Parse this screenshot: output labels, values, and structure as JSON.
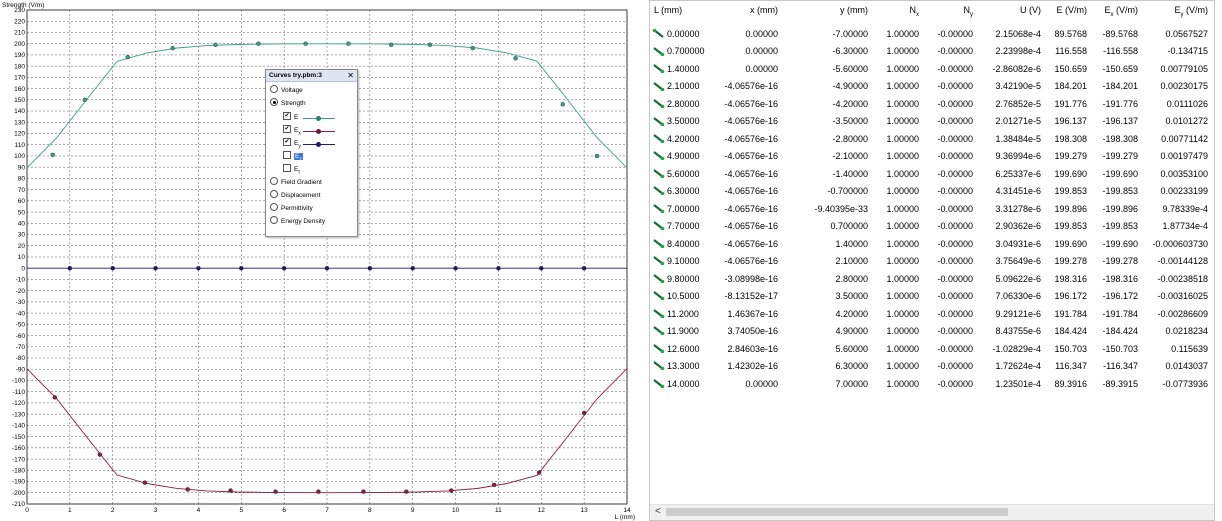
{
  "chart": {
    "ylabel": "Strength (V/m)",
    "xlabel": "L (mm)",
    "yticks": [
      230,
      220,
      210,
      200,
      190,
      180,
      170,
      160,
      150,
      140,
      130,
      120,
      110,
      100,
      90,
      80,
      70,
      60,
      50,
      40,
      30,
      20,
      10,
      0,
      -10,
      -20,
      -30,
      -40,
      -50,
      -60,
      -70,
      -80,
      -90,
      -100,
      -110,
      -120,
      -130,
      -140,
      -150,
      -160,
      -170,
      -180,
      -190,
      -200,
      -210
    ],
    "xticks": [
      0,
      1,
      2,
      3,
      4,
      5,
      6,
      7,
      8,
      9,
      10,
      11,
      12,
      13,
      14
    ]
  },
  "chart_data": {
    "type": "line",
    "xlabel": "L (mm)",
    "ylabel": "Strength (V/m)",
    "xlim": [
      0,
      14
    ],
    "ylim": [
      -210,
      230
    ],
    "grid": true,
    "series": [
      {
        "name": "E",
        "color": "#3c9e87",
        "x": [
          0,
          0.7,
          1.4,
          2.1,
          2.8,
          3.5,
          4.2,
          4.9,
          5.6,
          6.3,
          7,
          7.7,
          8.4,
          9.1,
          9.8,
          10.5,
          11.2,
          11.9,
          12.6,
          13.3,
          14
        ],
        "y": [
          89.5768,
          116.558,
          150.659,
          184.201,
          191.776,
          196.137,
          198.308,
          199.279,
          199.69,
          199.853,
          199.896,
          199.853,
          199.69,
          199.278,
          198.316,
          196.172,
          191.784,
          184.424,
          150.703,
          116.347,
          89.3916
        ],
        "markers_x": [
          0.6,
          1.35,
          2.35,
          3.4,
          4.4,
          5.4,
          6.5,
          7.5,
          8.5,
          9.4,
          10.4,
          11.4,
          12.5,
          13.3
        ],
        "markers_y": [
          101,
          150,
          188,
          196,
          199,
          200,
          200,
          200,
          199,
          199,
          196,
          187,
          146,
          100
        ]
      },
      {
        "name": "Ex",
        "color": "#8a1f4a",
        "x": [
          0,
          0.7,
          1.4,
          2.1,
          2.8,
          3.5,
          4.2,
          4.9,
          5.6,
          6.3,
          7,
          7.7,
          8.4,
          9.1,
          9.8,
          10.5,
          11.2,
          11.9,
          12.6,
          13.3,
          14
        ],
        "y": [
          -89.5768,
          -116.558,
          -150.659,
          -184.201,
          -191.776,
          -196.137,
          -198.308,
          -199.279,
          -199.69,
          -199.853,
          -199.896,
          -199.853,
          -199.69,
          -199.278,
          -198.316,
          -196.172,
          -191.784,
          -184.424,
          -150.703,
          -116.347,
          -89.3915
        ],
        "markers_x": [
          0.65,
          1.7,
          2.75,
          3.75,
          4.75,
          5.8,
          6.8,
          7.85,
          8.85,
          9.9,
          10.9,
          11.95,
          13.0
        ],
        "markers_y": [
          -115,
          -166,
          -191,
          -197,
          -198,
          -199,
          -199,
          -199,
          -199,
          -198,
          -193,
          -182,
          -129
        ]
      },
      {
        "name": "Ey",
        "color": "#1c1c6e",
        "x": [
          0,
          14
        ],
        "y": [
          0,
          0
        ],
        "markers_x": [
          1,
          2,
          3,
          4,
          5,
          6,
          7,
          8,
          9,
          10,
          11,
          12,
          13
        ],
        "markers_y": [
          0,
          0,
          0,
          0,
          0,
          0,
          0,
          0,
          0,
          0,
          0,
          0,
          0
        ]
      }
    ]
  },
  "dialog": {
    "title": "Curves try.pbm:3",
    "close": "✕",
    "options": {
      "voltage": "Voltage",
      "strength": "Strength",
      "e": "E",
      "ex": "Ex",
      "ey": "Ey",
      "ez": "Ez",
      "et": "Et",
      "field_gradient": "Field Gradient",
      "displacement": "Displacement",
      "permittivity": "Permittivity",
      "energy_density": "Energy Density"
    },
    "selected": "strength",
    "checked": {
      "e": true,
      "ex": true,
      "ey": true,
      "ez": false,
      "et": false
    }
  },
  "table": {
    "headers": [
      "L (mm)",
      "x (mm)",
      "y (mm)",
      "Nx",
      "Ny",
      "U (V)",
      "E (V/m)",
      "Ex (V/m)",
      "Ey (V/m)"
    ],
    "rows": [
      [
        "0.00000",
        "0.00000",
        "-7.00000",
        "1.00000",
        "-0.00000",
        "2.15068e-4",
        "89.5768",
        "-89.5768",
        "0.0567527"
      ],
      [
        "0.700000",
        "0.00000",
        "-6.30000",
        "1.00000",
        "-0.00000",
        "2.23998e-4",
        "116.558",
        "-116.558",
        "-0.134715"
      ],
      [
        "1.40000",
        "0.00000",
        "-5.60000",
        "1.00000",
        "-0.00000",
        "-2.86082e-6",
        "150.659",
        "-150.659",
        "0.00779105"
      ],
      [
        "2.10000",
        "-4.06576e-16",
        "-4.90000",
        "1.00000",
        "-0.00000",
        "3.42190e-5",
        "184.201",
        "-184.201",
        "0.00230175"
      ],
      [
        "2.80000",
        "-4.06576e-16",
        "-4.20000",
        "1.00000",
        "-0.00000",
        "2.76852e-5",
        "191.776",
        "-191.776",
        "0.0111026"
      ],
      [
        "3.50000",
        "-4.06576e-16",
        "-3.50000",
        "1.00000",
        "-0.00000",
        "2.01271e-5",
        "196.137",
        "-196.137",
        "0.0101272"
      ],
      [
        "4.20000",
        "-4.06576e-16",
        "-2.80000",
        "1.00000",
        "-0.00000",
        "1.38484e-5",
        "198.308",
        "-198.308",
        "0.00771142"
      ],
      [
        "4.90000",
        "-4.06576e-16",
        "-2.10000",
        "1.00000",
        "-0.00000",
        "9.36994e-6",
        "199.279",
        "-199.279",
        "0.00197479"
      ],
      [
        "5.60000",
        "-4.06576e-16",
        "-1.40000",
        "1.00000",
        "-0.00000",
        "6.25337e-6",
        "199.690",
        "-199.690",
        "0.00353100"
      ],
      [
        "6.30000",
        "-4.06576e-16",
        "-0.700000",
        "1.00000",
        "-0.00000",
        "4.31451e-6",
        "199.853",
        "-199.853",
        "0.00233199"
      ],
      [
        "7.00000",
        "-4.06576e-16",
        "-9.40395e-33",
        "1.00000",
        "-0.00000",
        "3.31278e-6",
        "199.896",
        "-199.896",
        "9.78339e-4"
      ],
      [
        "7.70000",
        "-4.06576e-16",
        "0.700000",
        "1.00000",
        "-0.00000",
        "2.90362e-6",
        "199.853",
        "-199.853",
        "1.87734e-4"
      ],
      [
        "8.40000",
        "-4.06576e-16",
        "1.40000",
        "1.00000",
        "-0.00000",
        "3.04931e-6",
        "199.690",
        "-199.690",
        "-0.000603730"
      ],
      [
        "9.10000",
        "-4.06576e-16",
        "2.10000",
        "1.00000",
        "-0.00000",
        "3.75649e-6",
        "199.278",
        "-199.278",
        "-0.00144128"
      ],
      [
        "9.80000",
        "-3.08998e-16",
        "2.80000",
        "1.00000",
        "-0.00000",
        "5.09622e-6",
        "198.316",
        "-198.316",
        "-0.00238518"
      ],
      [
        "10.5000",
        "-8.13152e-17",
        "3.50000",
        "1.00000",
        "-0.00000",
        "7.06330e-6",
        "196.172",
        "-196.172",
        "-0.00316025"
      ],
      [
        "11.2000",
        "1.46367e-16",
        "4.20000",
        "1.00000",
        "-0.00000",
        "9.29121e-6",
        "191.784",
        "-191.784",
        "-0.00286609"
      ],
      [
        "11.9000",
        "3.74050e-16",
        "4.90000",
        "1.00000",
        "-0.00000",
        "8.43755e-6",
        "184.424",
        "-184.424",
        "0.0218234"
      ],
      [
        "12.6000",
        "2.84603e-16",
        "5.60000",
        "1.00000",
        "-0.00000",
        "-1.02829e-4",
        "150.703",
        "-150.703",
        "0.115639"
      ],
      [
        "13.3000",
        "1.42302e-16",
        "6.30000",
        "1.00000",
        "-0.00000",
        "1.72624e-4",
        "116.347",
        "-116.347",
        "0.0143037"
      ],
      [
        "14.0000",
        "0.00000",
        "7.00000",
        "1.00000",
        "-0.00000",
        "1.23501e-4",
        "89.3916",
        "-89.3915",
        "-0.0773936"
      ]
    ],
    "scroll_left": "<"
  }
}
